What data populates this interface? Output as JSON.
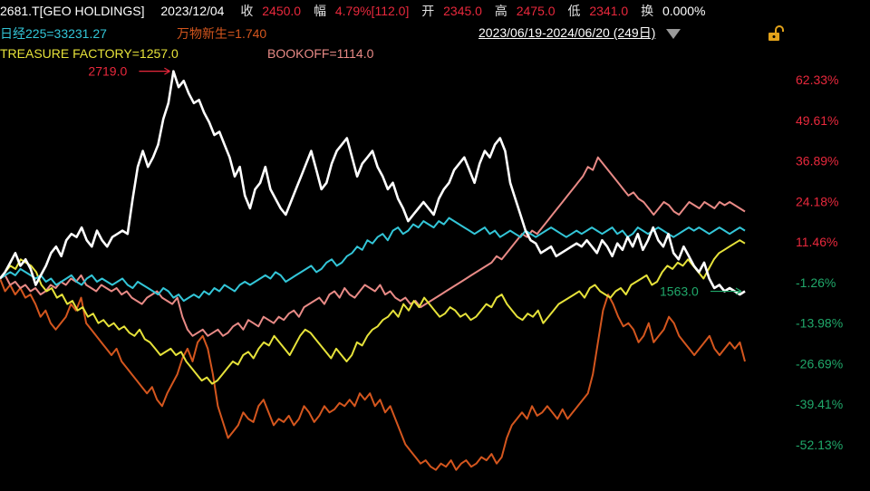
{
  "header": {
    "symbol": "2681.T[GEO HOLDINGS]",
    "date": "2023/12/04",
    "close_label": "收",
    "close_value": "2450.0",
    "change_label": "幅",
    "change_value": "4.79%[112.0]",
    "open_label": "开",
    "open_value": "2345.0",
    "high_label": "高",
    "high_value": "2475.0",
    "low_label": "低",
    "low_value": "2341.0",
    "turnover_label": "换",
    "turnover_value": "0.000%"
  },
  "legend": {
    "nikkei": "日经225=33231.27",
    "wanwu": "万物新生=1.740",
    "treasure": "TREASURE FACTORY=1257.0",
    "bookoff": "BOOKOFF=1114.0"
  },
  "range": {
    "text": "2023/06/19-2024/06/20 (249日)"
  },
  "icons": {
    "dropdown": "chevron-down-icon",
    "lock": "lock-icon"
  },
  "colors": {
    "geo": "#ffffff",
    "nikkei": "#33c6d8",
    "wanwu": "#d4561e",
    "treasure": "#e6e23a",
    "bookoff": "#e88a86",
    "positive": "#e8283c",
    "negative": "#20a86a"
  },
  "chart_data": {
    "type": "line",
    "x_axis": {
      "start": "2023/06/19",
      "end": "2024/06/20",
      "trading_days": 249
    },
    "y_axis": {
      "unit": "%",
      "ticks": [
        "62.33%",
        "49.61%",
        "36.89%",
        "24.18%",
        "11.46%",
        "-1.26%",
        "-13.98%",
        "-26.69%",
        "-39.41%",
        "-52.13%"
      ],
      "tick_values": [
        62.33,
        49.61,
        36.89,
        24.18,
        11.46,
        -1.26,
        -13.98,
        -26.69,
        -39.41,
        -52.13
      ],
      "range": [
        -62,
        72
      ]
    },
    "annotations": [
      {
        "text": "2719.0",
        "series": "GEO HOLDINGS",
        "kind": "max",
        "index": 34
      },
      {
        "text": "1563.0",
        "series": "GEO HOLDINGS",
        "kind": "min",
        "index": 200
      }
    ],
    "series": [
      {
        "name": "GEO HOLDINGS",
        "color": "#ffffff",
        "values": [
          0,
          2,
          5,
          8,
          4,
          6,
          3,
          -2,
          1,
          4,
          8,
          10,
          7,
          12,
          14,
          13,
          16,
          12,
          10,
          15,
          12,
          10,
          13,
          14,
          15,
          14,
          25,
          35,
          40,
          35,
          38,
          42,
          50,
          55,
          65,
          60,
          62,
          58,
          55,
          56,
          52,
          49,
          45,
          46,
          42,
          38,
          32,
          35,
          26,
          22,
          28,
          30,
          35,
          28,
          25,
          22,
          20,
          24,
          28,
          32,
          36,
          40,
          34,
          28,
          30,
          36,
          40,
          42,
          44,
          38,
          32,
          36,
          38,
          40,
          35,
          32,
          28,
          30,
          25,
          22,
          18,
          20,
          22,
          24,
          22,
          20,
          25,
          28,
          30,
          34,
          36,
          38,
          34,
          30,
          36,
          40,
          38,
          42,
          44,
          40,
          30,
          25,
          20,
          15,
          12,
          11,
          8,
          9,
          10,
          7,
          8,
          9,
          10,
          11,
          10,
          12,
          10,
          8,
          12,
          10,
          7,
          11,
          9,
          13,
          10,
          14,
          9,
          12,
          16,
          12,
          10,
          14,
          8,
          6,
          10,
          7,
          4,
          2,
          5,
          0,
          -3,
          -2,
          -4,
          -3,
          -4,
          -5,
          -4
        ]
      },
      {
        "name": "日经225",
        "color": "#33c6d8",
        "values": [
          0,
          1,
          2,
          1,
          3,
          2,
          1,
          0,
          1,
          -1,
          0,
          -2,
          -1,
          0,
          1,
          -1,
          -2,
          0,
          1,
          -1,
          0,
          -1,
          -2,
          -1,
          0,
          -2,
          -3,
          -1,
          -2,
          -3,
          -4,
          -5,
          -3,
          -4,
          -6,
          -5,
          -7,
          -6,
          -5,
          -6,
          -4,
          -5,
          -3,
          -4,
          -2,
          -3,
          -4,
          -2,
          -1,
          -2,
          -1,
          0,
          1,
          0,
          2,
          1,
          -1,
          0,
          1,
          2,
          3,
          4,
          2,
          3,
          5,
          6,
          4,
          5,
          7,
          8,
          10,
          9,
          12,
          11,
          13,
          14,
          12,
          15,
          16,
          14,
          15,
          17,
          16,
          18,
          17,
          16,
          18,
          17,
          19,
          18,
          17,
          16,
          15,
          14,
          15,
          16,
          14,
          15,
          13,
          14,
          15,
          14,
          13,
          15,
          14,
          13,
          14,
          15,
          16,
          15,
          14,
          13,
          14,
          15,
          14,
          15,
          16,
          15,
          14,
          15,
          16,
          14,
          15,
          13,
          14,
          16,
          15,
          14,
          15,
          16,
          15,
          14,
          13,
          14,
          15,
          16,
          15,
          16,
          15,
          14,
          15,
          16,
          15,
          14,
          15,
          16,
          15
        ]
      },
      {
        "name": "万物新生",
        "color": "#d4561e",
        "values": [
          0,
          -4,
          -2,
          -5,
          -3,
          -6,
          -5,
          -8,
          -12,
          -10,
          -14,
          -16,
          -14,
          -12,
          -8,
          -10,
          -6,
          -14,
          -16,
          -18,
          -20,
          -22,
          -24,
          -22,
          -26,
          -28,
          -30,
          -32,
          -34,
          -36,
          -34,
          -38,
          -40,
          -36,
          -33,
          -30,
          -25,
          -22,
          -26,
          -20,
          -18,
          -22,
          -30,
          -40,
          -45,
          -50,
          -48,
          -46,
          -42,
          -44,
          -45,
          -40,
          -38,
          -42,
          -46,
          -44,
          -45,
          -43,
          -46,
          -44,
          -40,
          -42,
          -45,
          -43,
          -40,
          -42,
          -41,
          -39,
          -40,
          -38,
          -40,
          -36,
          -38,
          -36,
          -40,
          -38,
          -42,
          -40,
          -44,
          -48,
          -52,
          -54,
          -56,
          -58,
          -57,
          -59,
          -60,
          -58,
          -59,
          -57,
          -60,
          -58,
          -57,
          -59,
          -58,
          -56,
          -57,
          -55,
          -58,
          -56,
          -50,
          -46,
          -44,
          -42,
          -44,
          -40,
          -43,
          -42,
          -40,
          -42,
          -44,
          -41,
          -44,
          -42,
          -40,
          -38,
          -36,
          -30,
          -20,
          -10,
          -5,
          -8,
          -12,
          -15,
          -14,
          -16,
          -20,
          -18,
          -14,
          -20,
          -18,
          -16,
          -12,
          -14,
          -18,
          -20,
          -22,
          -24,
          -22,
          -20,
          -18,
          -22,
          -24,
          -22,
          -20,
          -22,
          -20,
          -26
        ]
      },
      {
        "name": "TREASURE FACTORY",
        "color": "#e6e23a",
        "values": [
          0,
          2,
          4,
          3,
          6,
          5,
          4,
          2,
          -2,
          -4,
          -3,
          -6,
          -5,
          -8,
          -7,
          -10,
          -9,
          -12,
          -11,
          -14,
          -13,
          -15,
          -14,
          -16,
          -15,
          -17,
          -18,
          -16,
          -19,
          -20,
          -22,
          -24,
          -23,
          -22,
          -24,
          -23,
          -26,
          -28,
          -30,
          -32,
          -31,
          -33,
          -32,
          -30,
          -28,
          -26,
          -27,
          -24,
          -23,
          -25,
          -22,
          -20,
          -21,
          -18,
          -20,
          -22,
          -24,
          -21,
          -18,
          -16,
          -17,
          -19,
          -21,
          -23,
          -25,
          -22,
          -24,
          -26,
          -24,
          -20,
          -21,
          -18,
          -16,
          -15,
          -13,
          -12,
          -10,
          -12,
          -8,
          -10,
          -7,
          -9,
          -6,
          -8,
          -10,
          -12,
          -11,
          -9,
          -10,
          -12,
          -11,
          -13,
          -12,
          -10,
          -8,
          -9,
          -6,
          -5,
          -8,
          -10,
          -12,
          -13,
          -11,
          -12,
          -10,
          -14,
          -12,
          -10,
          -8,
          -7,
          -6,
          -5,
          -4,
          -6,
          -3,
          -2,
          -4,
          -5,
          -6,
          -4,
          -3,
          -5,
          -2,
          -1,
          0,
          1,
          -2,
          -1,
          2,
          4,
          3,
          5,
          4,
          6,
          4,
          2,
          0,
          3,
          6,
          8,
          9,
          10,
          11,
          12,
          11
        ]
      },
      {
        "name": "BOOKOFF",
        "color": "#e88a86",
        "values": [
          0,
          1,
          -2,
          -1,
          -3,
          -2,
          -4,
          -3,
          -5,
          -4,
          -2,
          -3,
          -1,
          -2,
          0,
          -1,
          1,
          -2,
          -3,
          -4,
          -2,
          -3,
          -4,
          -3,
          -5,
          -4,
          -6,
          -7,
          -8,
          -6,
          -5,
          -4,
          -6,
          -7,
          -8,
          -6,
          -12,
          -16,
          -18,
          -17,
          -16,
          -18,
          -17,
          -16,
          -18,
          -17,
          -15,
          -14,
          -16,
          -13,
          -14,
          -15,
          -12,
          -13,
          -14,
          -12,
          -13,
          -11,
          -10,
          -12,
          -9,
          -8,
          -7,
          -6,
          -8,
          -5,
          -4,
          -6,
          -3,
          -5,
          -6,
          -4,
          -2,
          -3,
          -4,
          -2,
          -5,
          -4,
          -6,
          -7,
          -6,
          -8,
          -7,
          -9,
          -8,
          -7,
          -6,
          -5,
          -4,
          -3,
          -2,
          -1,
          0,
          1,
          2,
          3,
          4,
          5,
          7,
          6,
          8,
          10,
          12,
          14,
          13,
          15,
          14,
          16,
          18,
          20,
          22,
          24,
          26,
          28,
          30,
          32,
          35,
          34,
          38,
          36,
          34,
          32,
          30,
          28,
          26,
          27,
          25,
          24,
          22,
          20,
          22,
          24,
          23,
          21,
          20,
          22,
          24,
          23,
          22,
          24,
          23,
          22,
          24,
          23,
          24,
          23,
          22,
          21
        ]
      }
    ]
  }
}
